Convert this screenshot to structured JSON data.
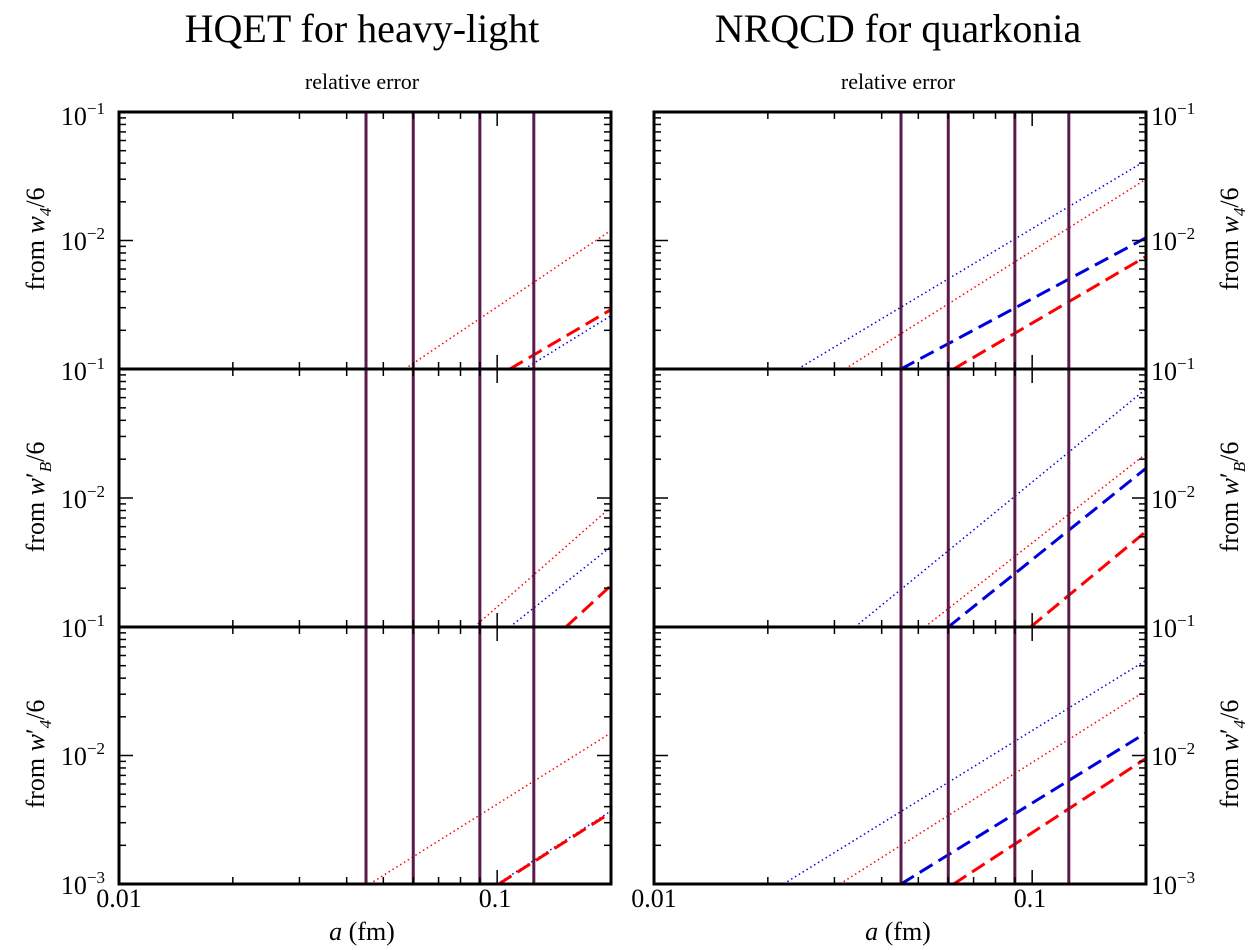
{
  "titles": {
    "left": "HQET for heavy-light",
    "right": "NRQCD for quarkonia"
  },
  "subtitles": {
    "left": "relative error",
    "right": "relative error"
  },
  "axis": {
    "x": {
      "base": "a",
      "unit": " (fm)",
      "tick_labels": [
        "0.01",
        "0.1"
      ]
    },
    "y_tick_labels": {
      "top": {
        "mant": "10",
        "exp": "−1"
      },
      "mid": {
        "mant": "10",
        "exp": "−2"
      },
      "bottom": {
        "mant": "10",
        "exp": "−3"
      }
    },
    "row_labels": [
      {
        "prefix": "from ",
        "var": "w",
        "prime": "",
        "sub": "4",
        "suffix": "/6"
      },
      {
        "prefix": "from ",
        "var": "w",
        "prime": "′",
        "sub": "B",
        "suffix": "/6"
      },
      {
        "prefix": "from ",
        "var": "w",
        "prime": "′",
        "sub": "4",
        "suffix": "/6"
      }
    ]
  },
  "colors": {
    "red": "#ff0000",
    "blue": "#0000dd",
    "vline": "#5c1a4a",
    "axis": "#000000"
  },
  "chart_data": {
    "type": "line",
    "xscale": "log",
    "yscale": "log",
    "xlim": [
      0.01,
      0.2
    ],
    "ylim": [
      0.001,
      0.1
    ],
    "lattice_spacings_fm": [
      0.045,
      0.06,
      0.09,
      0.125
    ],
    "panels": [
      {
        "column": "HQET for heavy-light",
        "row": "w4/6",
        "series": [
          {
            "color": "red",
            "style": "dotted",
            "points": [
              [
                0.057,
                0.001
              ],
              [
                0.2,
                0.012
              ]
            ]
          },
          {
            "color": "red",
            "style": "dashed",
            "points": [
              [
                0.108,
                0.001
              ],
              [
                0.2,
                0.0029
              ]
            ]
          },
          {
            "color": "blue",
            "style": "dotted",
            "points": [
              [
                0.118,
                0.001
              ],
              [
                0.2,
                0.0026
              ]
            ]
          }
        ]
      },
      {
        "column": "NRQCD for quarkonia",
        "row": "w4/6",
        "series": [
          {
            "color": "blue",
            "style": "dotted",
            "points": [
              [
                0.024,
                0.001
              ],
              [
                0.2,
                0.042
              ]
            ]
          },
          {
            "color": "red",
            "style": "dotted",
            "points": [
              [
                0.032,
                0.001
              ],
              [
                0.2,
                0.03
              ]
            ]
          },
          {
            "color": "blue",
            "style": "dashed",
            "points": [
              [
                0.045,
                0.001
              ],
              [
                0.2,
                0.0105
              ]
            ]
          },
          {
            "color": "red",
            "style": "dashed",
            "points": [
              [
                0.062,
                0.001
              ],
              [
                0.2,
                0.0075
              ]
            ]
          }
        ]
      },
      {
        "column": "HQET for heavy-light",
        "row": "w'B/6",
        "series": [
          {
            "color": "red",
            "style": "dotted",
            "points": [
              [
                0.087,
                0.001
              ],
              [
                0.2,
                0.0085
              ]
            ]
          },
          {
            "color": "blue",
            "style": "dotted",
            "points": [
              [
                0.108,
                0.001
              ],
              [
                0.2,
                0.0042
              ]
            ]
          },
          {
            "color": "red",
            "style": "dashed",
            "points": [
              [
                0.152,
                0.001
              ],
              [
                0.2,
                0.0021
              ]
            ]
          }
        ]
      },
      {
        "column": "NRQCD for quarkonia",
        "row": "w'B/6",
        "series": [
          {
            "color": "blue",
            "style": "dotted",
            "points": [
              [
                0.034,
                0.001
              ],
              [
                0.2,
                0.07
              ]
            ]
          },
          {
            "color": "red",
            "style": "dotted",
            "points": [
              [
                0.052,
                0.001
              ],
              [
                0.2,
                0.022
              ]
            ]
          },
          {
            "color": "blue",
            "style": "dashed",
            "points": [
              [
                0.06,
                0.001
              ],
              [
                0.2,
                0.017
              ]
            ]
          },
          {
            "color": "red",
            "style": "dashed",
            "points": [
              [
                0.099,
                0.001
              ],
              [
                0.2,
                0.0055
              ]
            ]
          }
        ]
      },
      {
        "column": "HQET for heavy-light",
        "row": "w'4/6",
        "series": [
          {
            "color": "red",
            "style": "dotted",
            "points": [
              [
                0.046,
                0.001
              ],
              [
                0.2,
                0.015
              ]
            ]
          },
          {
            "color": "blue",
            "style": "dotted",
            "points": [
              [
                0.1,
                0.001
              ],
              [
                0.2,
                0.0037
              ]
            ]
          },
          {
            "color": "red",
            "style": "dashed",
            "points": [
              [
                0.101,
                0.001
              ],
              [
                0.2,
                0.0036
              ]
            ]
          }
        ]
      },
      {
        "column": "NRQCD for quarkonia",
        "row": "w'4/6",
        "series": [
          {
            "color": "blue",
            "style": "dotted",
            "points": [
              [
                0.022,
                0.001
              ],
              [
                0.2,
                0.055
              ]
            ]
          },
          {
            "color": "red",
            "style": "dotted",
            "points": [
              [
                0.031,
                0.001
              ],
              [
                0.2,
                0.032
              ]
            ]
          },
          {
            "color": "blue",
            "style": "dashed",
            "points": [
              [
                0.045,
                0.001
              ],
              [
                0.2,
                0.015
              ]
            ]
          },
          {
            "color": "red",
            "style": "dashed",
            "points": [
              [
                0.062,
                0.001
              ],
              [
                0.2,
                0.0095
              ]
            ]
          }
        ]
      }
    ]
  }
}
